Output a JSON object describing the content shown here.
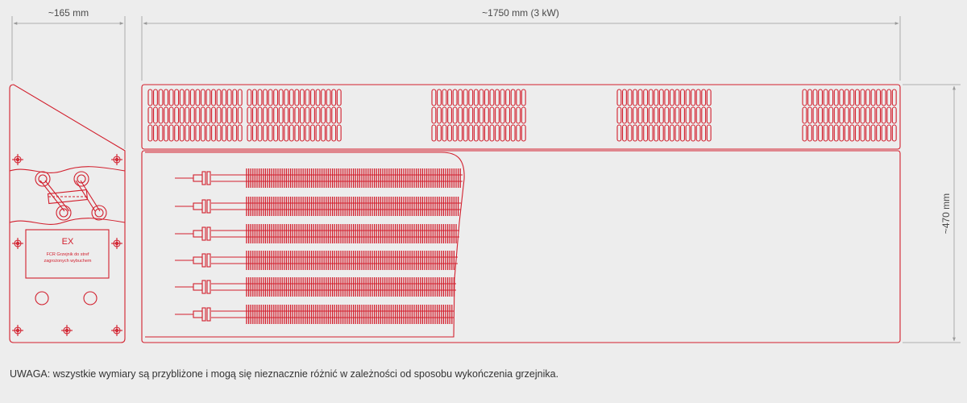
{
  "colors": {
    "background": "#ededed",
    "drawing_red": "#d21f2d",
    "dimension_line": "#9a9a9a",
    "dimension_text": "#4a4a4a",
    "note_text": "#333333"
  },
  "dimensions": {
    "side_width": "~165 mm",
    "front_width": "~1750 mm (3 kW)",
    "height": "~470 mm"
  },
  "side_view": {
    "plate_title": "EX",
    "plate_text_line1": "FCR Grzejnik do stref",
    "plate_text_line2": "zagrożonych wybuchem"
  },
  "front_view": {
    "vent_rows": 3,
    "vent_groups": 5,
    "slots_per_group": 18,
    "heating_elements": 6
  },
  "note": "UWAGA: wszystkie wymiary są przybliżone i mogą się nieznacznie różnić w zależności od sposobu wykończenia grzejnika."
}
